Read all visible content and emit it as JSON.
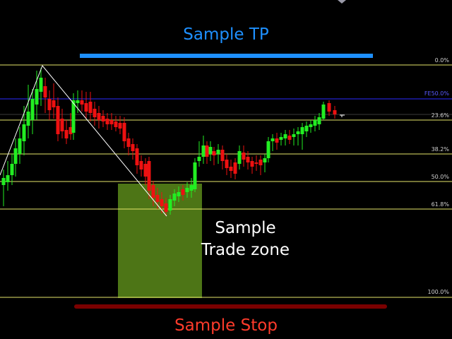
{
  "labels": {
    "tp": "Sample TP",
    "stop": "Sample Stop",
    "zone_line1": "Sample",
    "zone_line2": "Trade zone"
  },
  "fib_levels": [
    {
      "label": "0.0%"
    },
    {
      "label": "23.6%"
    },
    {
      "label": "38.2%"
    },
    {
      "label": "50.0%"
    },
    {
      "label": "61.8%"
    },
    {
      "label": "100.0%"
    }
  ],
  "fe_level": {
    "label": "FE50.0%"
  },
  "colors": {
    "background": "#000000",
    "bull_candle": "#22ee22",
    "bear_candle": "#ee1111",
    "fib_line": "#e6e66a",
    "fe_line": "#2a2aff",
    "tp_bar": "#1e90ff",
    "stop_bar": "#7a0000",
    "trade_zone": "#5a8a1a",
    "zigzag": "#ffffff"
  },
  "chart_data": {
    "type": "candlestick",
    "candle_colors_sequence": [
      "bull",
      "bull",
      "bull",
      "bull",
      "bull",
      "bull",
      "bull",
      "bull",
      "bull",
      "bull",
      "bull",
      "bear",
      "bull",
      "bear",
      "bear",
      "bear",
      "bear",
      "bear",
      "bull",
      "bull",
      "bear",
      "bear",
      "bull",
      "bear",
      "bear",
      "bear",
      "bear",
      "bear",
      "bear",
      "bear",
      "bear",
      "bear",
      "bear",
      "bear",
      "bear",
      "bear",
      "bear",
      "bear",
      "bear",
      "bear",
      "bear",
      "bear",
      "bear",
      "bear",
      "bull",
      "bear",
      "bull",
      "bull",
      "bull",
      "bull",
      "bull",
      "bull",
      "bull",
      "bull",
      "bull",
      "bull",
      "bear",
      "bull",
      "bear",
      "bear",
      "bear",
      "bull",
      "bull",
      "bear",
      "bear",
      "bull",
      "bull",
      "bull",
      "bull",
      "bull",
      "bull",
      "bull",
      "bear",
      "bull",
      "bull",
      "bull",
      "bull",
      "bull",
      "bear",
      "bear"
    ]
  }
}
